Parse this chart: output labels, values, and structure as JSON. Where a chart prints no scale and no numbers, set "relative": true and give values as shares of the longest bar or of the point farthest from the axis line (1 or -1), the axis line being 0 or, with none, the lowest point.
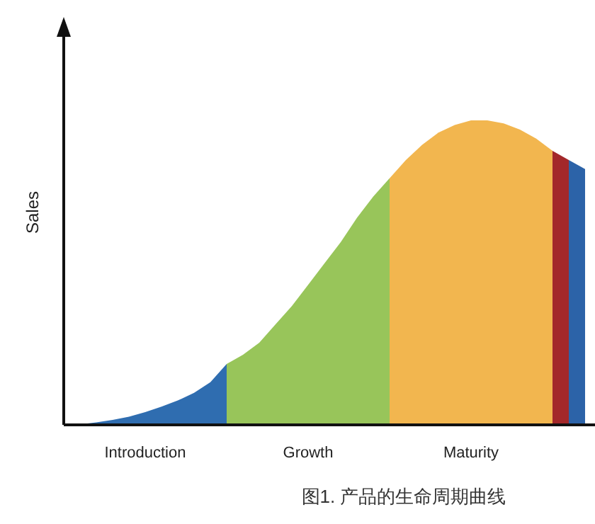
{
  "chart_data": {
    "type": "area",
    "relative": true,
    "ylabel": "Sales",
    "categories": [
      null,
      null,
      null,
      null,
      null,
      "Introduction",
      null,
      null,
      null,
      null,
      null,
      null,
      null,
      null,
      null,
      "Growth",
      null,
      null,
      null,
      null,
      null,
      null,
      null,
      null,
      null,
      "Maturity",
      null,
      null,
      null,
      null,
      null,
      null,
      null
    ],
    "series": [
      {
        "color": "#2f6db0",
        "values": [
          0,
          0.002,
          0.008,
          0.016,
          0.027,
          0.042,
          0.06,
          0.08,
          0.105,
          0.14,
          0.2,
          null,
          null,
          null,
          null,
          null,
          null,
          null,
          null,
          null,
          null,
          null,
          null,
          null,
          null,
          null,
          null,
          null,
          null,
          null,
          null,
          null,
          null
        ]
      },
      {
        "color": "#98c55a",
        "values": [
          null,
          null,
          null,
          null,
          null,
          null,
          null,
          null,
          null,
          null,
          0.2,
          0.23,
          0.27,
          0.33,
          0.39,
          0.46,
          0.53,
          0.6,
          0.68,
          0.75,
          0.81,
          null,
          null,
          null,
          null,
          null,
          null,
          null,
          null,
          null,
          null,
          null,
          null
        ]
      },
      {
        "color": "#f2b64f",
        "values": [
          null,
          null,
          null,
          null,
          null,
          null,
          null,
          null,
          null,
          null,
          null,
          null,
          null,
          null,
          null,
          null,
          null,
          null,
          null,
          null,
          0.81,
          0.87,
          0.92,
          0.96,
          0.985,
          1,
          1,
          0.99,
          0.97,
          0.94,
          0.9,
          null,
          null
        ]
      },
      {
        "color": "#a3282a",
        "values": [
          null,
          null,
          null,
          null,
          null,
          null,
          null,
          null,
          null,
          null,
          null,
          null,
          null,
          null,
          null,
          null,
          null,
          null,
          null,
          null,
          null,
          null,
          null,
          null,
          null,
          null,
          null,
          null,
          null,
          null,
          0.9,
          0.87,
          null
        ]
      },
      {
        "color": "#2c63a8",
        "values": [
          null,
          null,
          null,
          null,
          null,
          null,
          null,
          null,
          null,
          null,
          null,
          null,
          null,
          null,
          null,
          null,
          null,
          null,
          null,
          null,
          null,
          null,
          null,
          null,
          null,
          null,
          null,
          null,
          null,
          null,
          null,
          0.87,
          0.84
        ]
      }
    ],
    "annotations": [
      "图1. 产品的生命周期曲线"
    ]
  }
}
